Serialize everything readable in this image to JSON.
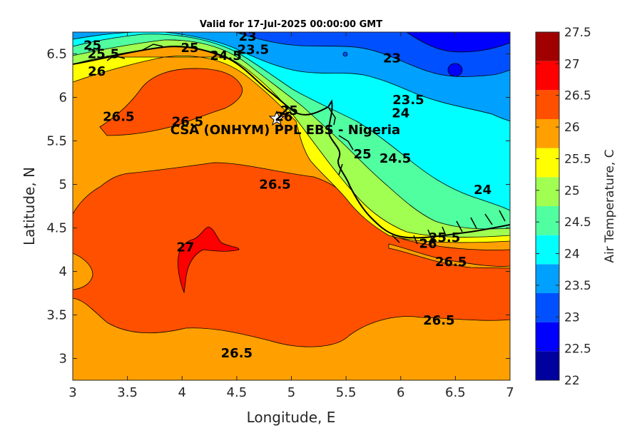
{
  "chart_data": {
    "type": "heatmap",
    "title": "Valid for 17-Jul-2025 00:00:00 GMT",
    "xlabel": "Longitude, E",
    "ylabel": "Latitude, N",
    "xlim": [
      3,
      7
    ],
    "ylim": [
      2.75,
      6.75
    ],
    "x_ticks": [
      "3",
      "3.5",
      "4",
      "4.5",
      "5",
      "5.5",
      "6",
      "6.5",
      "7"
    ],
    "y_ticks": [
      "3",
      "3.5",
      "4",
      "4.5",
      "5",
      "5.5",
      "6",
      "6.5"
    ],
    "grid": false,
    "annotation": "CSA (ONHYM) PPL EBS - Nigeria",
    "colorbar": {
      "label": "Air Temperature, C",
      "ticks": [
        "22",
        "22.5",
        "23",
        "23.5",
        "24",
        "24.5",
        "25",
        "25.5",
        "26",
        "26.5",
        "27",
        "27.5"
      ],
      "levels": [
        22,
        22.5,
        23,
        23.5,
        24,
        24.5,
        25,
        25.5,
        26,
        26.5,
        27,
        27.5
      ],
      "colors": [
        "#00009f",
        "#0000ff",
        "#0050ff",
        "#00a0ff",
        "#00ffff",
        "#50ffa0",
        "#a0ff50",
        "#ffff00",
        "#ffa000",
        "#ff5000",
        "#ff0000",
        "#a00000"
      ]
    },
    "contour_labels": [
      {
        "text": "23",
        "lon": 4.6,
        "lat": 6.7
      },
      {
        "text": "23.5",
        "lon": 4.65,
        "lat": 6.55
      },
      {
        "text": "25",
        "lon": 3.18,
        "lat": 6.6
      },
      {
        "text": "25.5",
        "lon": 3.28,
        "lat": 6.5
      },
      {
        "text": "26",
        "lon": 3.22,
        "lat": 6.3
      },
      {
        "text": "25",
        "lon": 4.07,
        "lat": 6.57
      },
      {
        "text": "24.5",
        "lon": 4.4,
        "lat": 6.48
      },
      {
        "text": "23",
        "lon": 5.92,
        "lat": 6.45
      },
      {
        "text": "23.5",
        "lon": 6.07,
        "lat": 5.97
      },
      {
        "text": "24",
        "lon": 6.0,
        "lat": 5.82
      },
      {
        "text": "26.5",
        "lon": 3.42,
        "lat": 5.78
      },
      {
        "text": "26.5",
        "lon": 4.05,
        "lat": 5.72
      },
      {
        "text": "25",
        "lon": 4.98,
        "lat": 5.85
      },
      {
        "text": "26",
        "lon": 4.93,
        "lat": 5.78
      },
      {
        "text": "25",
        "lon": 5.65,
        "lat": 5.35
      },
      {
        "text": "24.5",
        "lon": 5.95,
        "lat": 5.3
      },
      {
        "text": "26.5",
        "lon": 4.85,
        "lat": 5.0
      },
      {
        "text": "24",
        "lon": 6.75,
        "lat": 4.94
      },
      {
        "text": "25.5",
        "lon": 6.4,
        "lat": 4.39
      },
      {
        "text": "26",
        "lon": 6.25,
        "lat": 4.32
      },
      {
        "text": "26.5",
        "lon": 6.46,
        "lat": 4.11
      },
      {
        "text": "27",
        "lon": 4.03,
        "lat": 4.28
      },
      {
        "text": "26.5",
        "lon": 6.35,
        "lat": 3.44
      },
      {
        "text": "26.5",
        "lon": 4.5,
        "lat": 3.06
      }
    ]
  }
}
